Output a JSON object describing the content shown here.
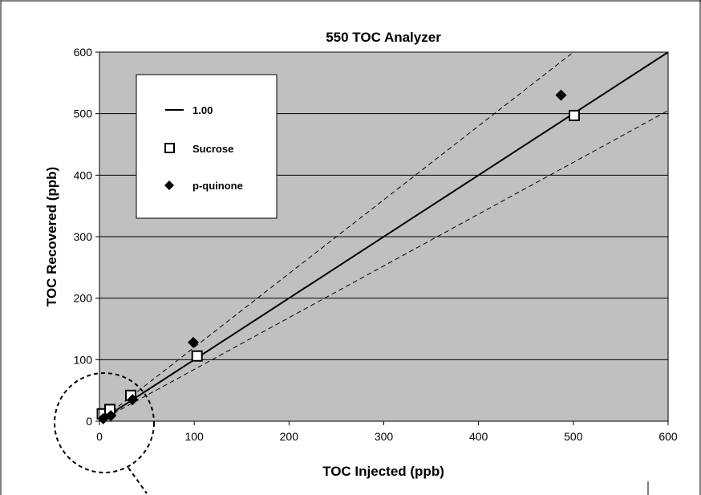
{
  "chart_data": {
    "type": "scatter",
    "title": "550 TOC Analyzer",
    "xlabel": "TOC Injected (ppb)",
    "ylabel": "TOC Recovered (ppb)",
    "xlim": [
      0,
      600
    ],
    "ylim": [
      0,
      600
    ],
    "xticks": [
      0,
      100,
      200,
      300,
      400,
      500,
      600
    ],
    "yticks": [
      0,
      100,
      200,
      300,
      400,
      500,
      600
    ],
    "grid": "horizontal",
    "plot_background": "#c0c0c0",
    "legend_position": "top-left",
    "series": [
      {
        "name": "1.00",
        "kind": "line",
        "style": "solid",
        "x": [
          0,
          600
        ],
        "y": [
          0,
          600
        ]
      },
      {
        "name": "",
        "kind": "line",
        "style": "dashed",
        "x": [
          0,
          600
        ],
        "y": [
          0,
          720
        ]
      },
      {
        "name": "",
        "kind": "line",
        "style": "dashed",
        "x": [
          0,
          600
        ],
        "y": [
          0,
          505
        ]
      },
      {
        "name": "Sucrose",
        "kind": "marker",
        "marker": "square-open",
        "x": [
          3,
          11,
          33,
          103,
          501
        ],
        "y": [
          12,
          19,
          42,
          106,
          497
        ]
      },
      {
        "name": "p-quinone",
        "kind": "marker",
        "marker": "diamond-filled",
        "x": [
          4,
          12,
          35,
          99,
          487
        ],
        "y": [
          4,
          9,
          35,
          128,
          530
        ]
      }
    ],
    "legend": [
      {
        "label": "1.00",
        "symbol": "line"
      },
      {
        "label": "Sucrose",
        "symbol": "square-open"
      },
      {
        "label": "p-quinone",
        "symbol": "diamond-filled"
      }
    ]
  }
}
